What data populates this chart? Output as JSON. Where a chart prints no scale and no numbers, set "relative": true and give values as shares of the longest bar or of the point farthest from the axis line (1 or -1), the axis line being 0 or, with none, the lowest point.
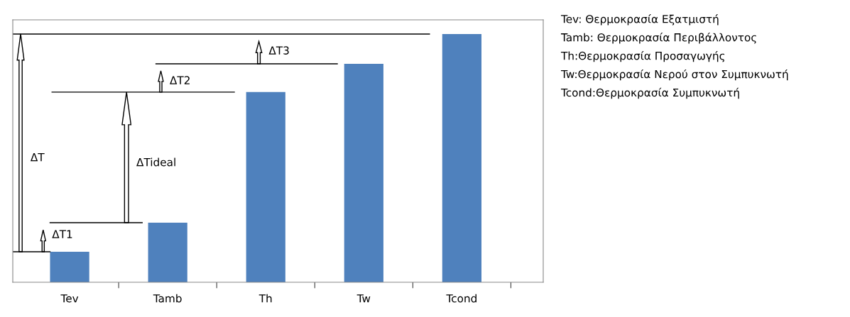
{
  "chart_data": {
    "type": "bar",
    "relative": true,
    "categories": [
      "Tev",
      "Tamb",
      "Th",
      "Tw",
      "Tcond"
    ],
    "values": [
      0.123,
      0.24,
      0.766,
      0.88,
      1.0
    ],
    "color": "#4f81bd",
    "grid": false,
    "ref_lines": [
      {
        "axis": "y",
        "value": 0.24,
        "color": "#000000"
      },
      {
        "axis": "y",
        "value": 0.766,
        "color": "#000000"
      },
      {
        "axis": "y",
        "value": 0.88,
        "color": "#000000"
      },
      {
        "axis": "y",
        "value": 1.0,
        "color": "#000000"
      }
    ],
    "annotations": [
      "ΔT",
      "ΔT1",
      "ΔTideal",
      "ΔT2",
      "ΔT3",
      "Tev: Θερμοκρασία Εξατμιστή",
      "Tamb: Θερμοκρασία Περιβάλλοντος",
      "Th:Θερμοκρασία Προσαγωγής",
      "Tw:Θερμοκρασία Νερού στον Συμπυκνωτή",
      "Tcond:Θερμοκρασία Συμπυκνωτή"
    ]
  }
}
